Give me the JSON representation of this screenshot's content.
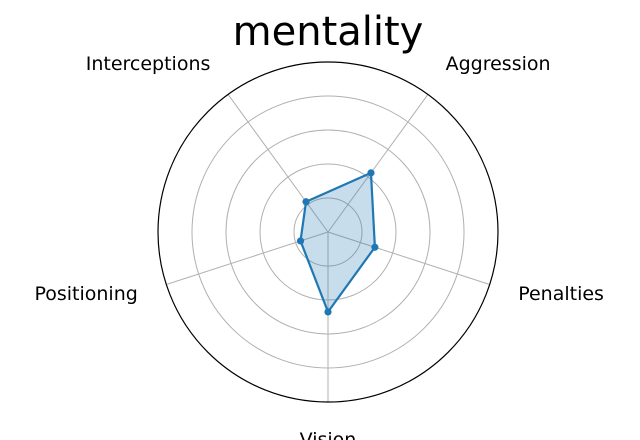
{
  "chart_data": {
    "type": "radar",
    "title": "mentality",
    "axes": [
      "Aggression",
      "Interceptions",
      "Positioning",
      "Vision",
      "Penalties"
    ],
    "values": [
      43,
      22,
      17,
      47,
      29
    ],
    "r_max": 100,
    "ring_levels": [
      20,
      40,
      60,
      80
    ],
    "grid": true,
    "legend": "none",
    "colors": {
      "line": "#1f77b4",
      "fill": "#1f77b4",
      "fill_opacity": 0.25,
      "grid": "#b0b0b0",
      "frame": "#000000"
    }
  }
}
